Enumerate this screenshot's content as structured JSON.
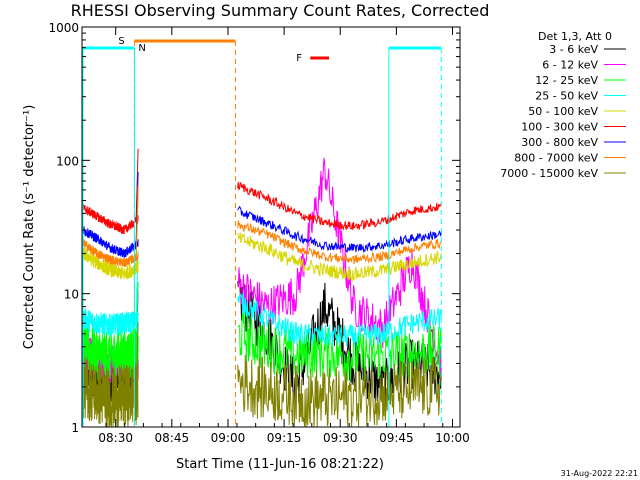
{
  "chart_data": {
    "type": "line",
    "title": "RHESSI Observing Summary Count Rates, Corrected",
    "xlabel": "Start Time (11-Jun-16 08:21:22)",
    "ylabel": "Corrected Count Rate (s⁻¹ detector⁻¹)",
    "y_scale": "log",
    "ylim": [
      1,
      1000
    ],
    "xlim_minutes_after_0821": [
      0,
      101
    ],
    "x_ticks": [
      "08:30",
      "08:45",
      "09:00",
      "09:15",
      "09:30",
      "09:45",
      "10:00"
    ],
    "y_ticks": [
      "1",
      "10",
      "100",
      "1000"
    ],
    "footer_date": "31-Aug-2022 22:21",
    "legend_header": "Det 1,3, Att 0",
    "flag_labels": {
      "saa": "S",
      "night": "N",
      "flare": "F"
    },
    "flags": {
      "saa_interval": [
        "08:35",
        "09:02"
      ],
      "night_intervals": [
        [
          "08:21",
          "08:35"
        ],
        [
          "09:43",
          "09:57"
        ]
      ],
      "flare_interval": [
        "09:22",
        "09:27"
      ]
    },
    "data_gaps": [
      [
        "08:36",
        "09:02"
      ],
      [
        "09:57",
        "10:01"
      ]
    ],
    "series": [
      {
        "name": "3 - 6 keV",
        "color": "#000000",
        "seg1": [
          3.0,
          2.5,
          2.2,
          2.3,
          2.1
        ],
        "seg2": [
          9.5,
          5.0,
          2.0,
          8.0,
          3.0,
          2.0,
          3.0,
          2.5
        ]
      },
      {
        "name": "6 - 12 keV",
        "color": "#ff00ff",
        "seg1": [
          3.6,
          3.2,
          3.0,
          3.2,
          3.0
        ],
        "seg2": [
          12.0,
          8.0,
          10.0,
          85.0,
          8.0,
          5.5,
          18.0,
          3.0
        ]
      },
      {
        "name": "12 - 25 keV",
        "color": "#00ff00",
        "seg1": [
          4.0,
          3.5,
          3.4,
          3.5,
          3.6
        ],
        "seg2": [
          5.0,
          4.0,
          3.5,
          3.6,
          3.4,
          3.5,
          3.6,
          3.8
        ]
      },
      {
        "name": "25 - 50 keV",
        "color": "#00ffff",
        "seg1": [
          6.5,
          6.0,
          5.8,
          6.0,
          6.2
        ],
        "seg2": [
          9.0,
          6.5,
          5.0,
          4.8,
          4.8,
          5.0,
          6.0,
          6.5
        ]
      },
      {
        "name": "50 - 100 keV",
        "color": "#d7d700",
        "seg1": [
          20.0,
          17.0,
          15.0,
          14.0,
          16.0
        ],
        "seg2": [
          26.0,
          22.0,
          17.0,
          15.0,
          14.0,
          15.0,
          17.0,
          19.0
        ]
      },
      {
        "name": "100 - 300 keV",
        "color": "#ff0000",
        "seg1": [
          44.0,
          38.0,
          33.0,
          30.0,
          36.0
        ],
        "seg2": [
          65.0,
          52.0,
          40.0,
          34.0,
          32.0,
          35.0,
          42.0,
          45.0
        ]
      },
      {
        "name": "300 - 800 keV",
        "color": "#0000ff",
        "seg1": [
          30.0,
          26.0,
          22.0,
          20.0,
          24.0
        ],
        "seg2": [
          42.0,
          34.0,
          27.0,
          23.0,
          22.0,
          23.0,
          26.0,
          28.0
        ]
      },
      {
        "name": "800 - 7000 keV",
        "color": "#ff8000",
        "seg1": [
          24.0,
          20.0,
          18.0,
          17.0,
          19.0
        ],
        "seg2": [
          33.0,
          28.0,
          22.0,
          19.0,
          18.0,
          19.0,
          22.0,
          24.0
        ]
      },
      {
        "name": "7000 - 15000 keV",
        "color": "#808000",
        "seg1": [
          2.0,
          1.8,
          1.6,
          1.7,
          1.8
        ],
        "seg2": [
          2.2,
          1.9,
          1.7,
          1.6,
          1.7,
          1.8,
          1.9,
          2.0
        ]
      }
    ]
  }
}
